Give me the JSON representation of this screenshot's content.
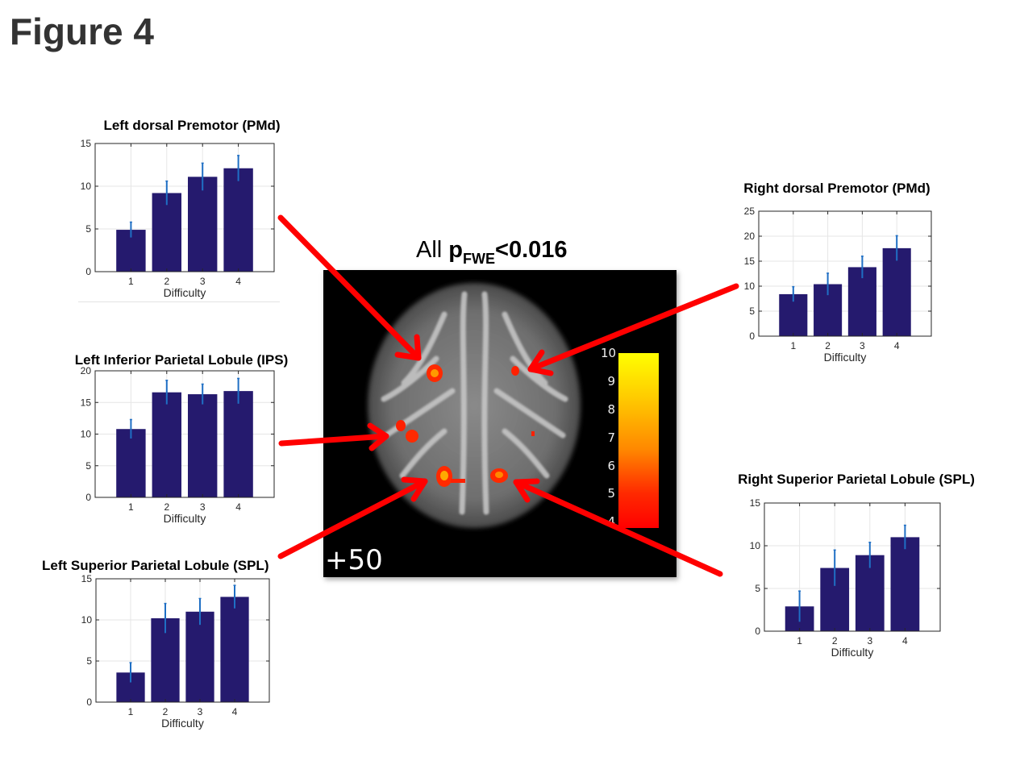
{
  "figure": {
    "title": "Figure 4",
    "center_label_prefix": "All ",
    "center_label_p": "p",
    "center_label_sub": "FWE",
    "center_label_suffix": "<0.016",
    "slice_label": "+50",
    "colorbar_ticks": [
      "10",
      "9",
      "8",
      "7",
      "6",
      "5",
      "4"
    ],
    "arrow_color": "#ff0000",
    "bar_color": "#251a6e",
    "errorbar_color": "#1f6fc4"
  },
  "chart_data": [
    {
      "id": "left-pmd",
      "type": "bar",
      "title": "Left dorsal Premotor (PMd)",
      "categories": [
        "1",
        "2",
        "3",
        "4"
      ],
      "values": [
        4.9,
        9.2,
        11.1,
        12.1
      ],
      "errors": [
        0.9,
        1.4,
        1.6,
        1.5
      ],
      "xlabel": "Difficulty",
      "ylabel": "",
      "ylim": [
        0,
        15
      ],
      "yticks": [
        0,
        5,
        10,
        15
      ],
      "grid": true
    },
    {
      "id": "left-ips",
      "type": "bar",
      "title": "Left Inferior Parietal Lobule (IPS)",
      "categories": [
        "1",
        "2",
        "3",
        "4"
      ],
      "values": [
        10.8,
        16.6,
        16.3,
        16.8
      ],
      "errors": [
        1.5,
        1.9,
        1.6,
        2.0
      ],
      "xlabel": "Difficulty",
      "ylabel": "",
      "ylim": [
        0,
        20
      ],
      "yticks": [
        0,
        5,
        10,
        15,
        20
      ],
      "grid": true
    },
    {
      "id": "left-spl",
      "type": "bar",
      "title": "Left Superior Parietal Lobule (SPL)",
      "categories": [
        "1",
        "2",
        "3",
        "4"
      ],
      "values": [
        3.6,
        10.2,
        11.0,
        12.8
      ],
      "errors": [
        1.2,
        1.8,
        1.6,
        1.4
      ],
      "xlabel": "Difficulty",
      "ylabel": "",
      "ylim": [
        0,
        15
      ],
      "yticks": [
        0,
        5,
        10,
        15
      ],
      "grid": true
    },
    {
      "id": "right-pmd",
      "type": "bar",
      "title": "Right dorsal Premotor (PMd)",
      "categories": [
        "1",
        "2",
        "3",
        "4"
      ],
      "values": [
        8.4,
        10.4,
        13.8,
        17.6
      ],
      "errors": [
        1.5,
        2.2,
        2.2,
        2.5
      ],
      "xlabel": "Difficulty",
      "ylabel": "",
      "ylim": [
        0,
        25
      ],
      "yticks": [
        0,
        5,
        10,
        15,
        20,
        25
      ],
      "grid": true
    },
    {
      "id": "right-spl",
      "type": "bar",
      "title": "Right Superior Parietal Lobule (SPL)",
      "categories": [
        "1",
        "2",
        "3",
        "4"
      ],
      "values": [
        2.9,
        7.4,
        8.9,
        11.0
      ],
      "errors": [
        1.8,
        2.1,
        1.5,
        1.4
      ],
      "xlabel": "Difficulty",
      "ylabel": "",
      "ylim": [
        0,
        15
      ],
      "yticks": [
        0,
        5,
        10,
        15
      ],
      "grid": true
    }
  ]
}
